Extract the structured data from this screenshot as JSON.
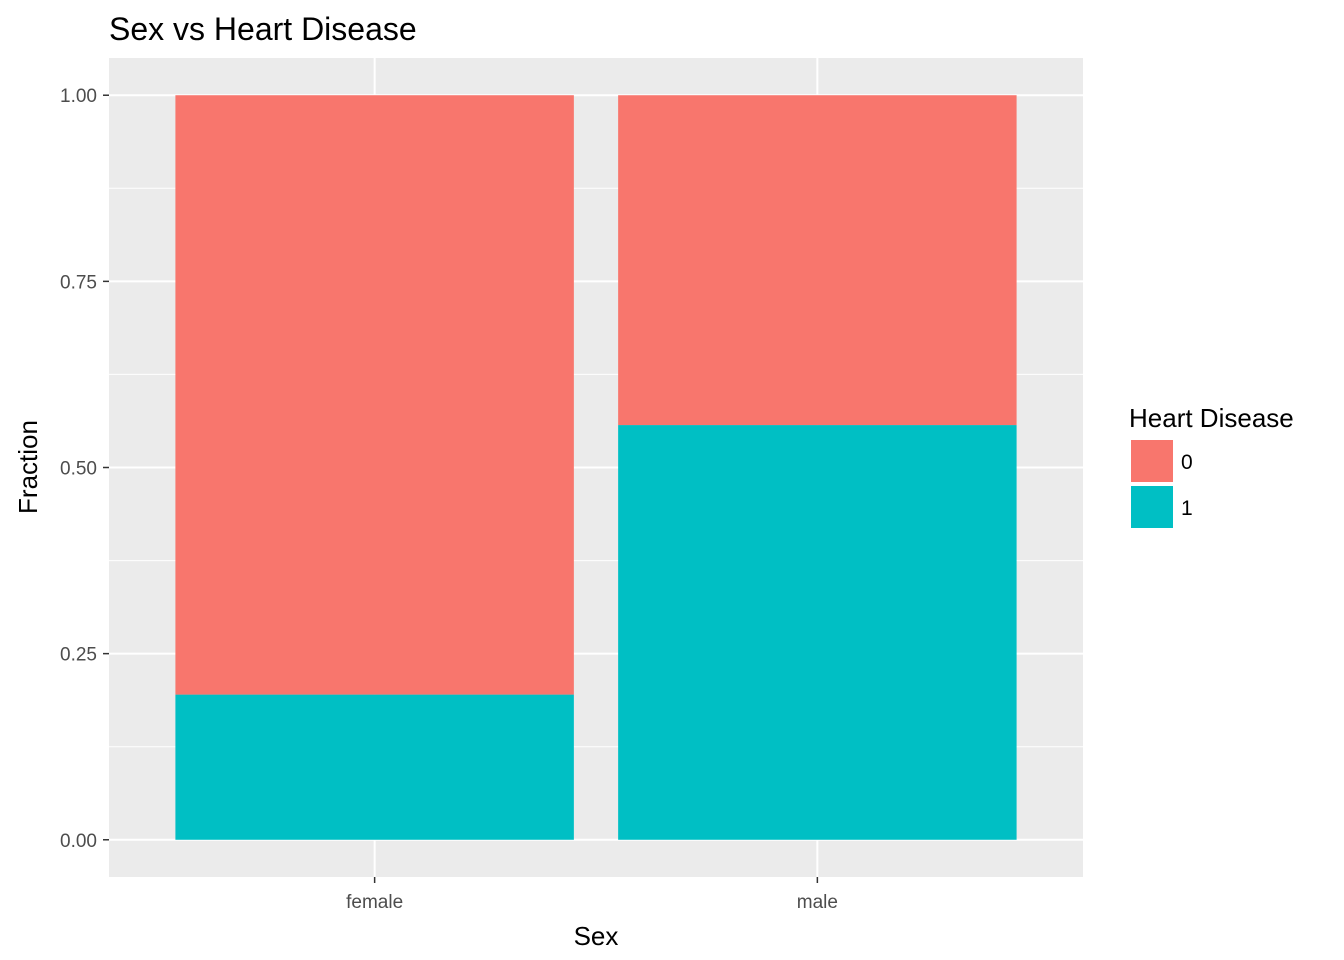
{
  "chart_data": {
    "type": "bar",
    "stacked": true,
    "title": "Sex vs Heart Disease",
    "xlabel": "Sex",
    "ylabel": "Fraction",
    "categories": [
      "female",
      "male"
    ],
    "series": [
      {
        "name": "0",
        "color": "#F8766D",
        "values": [
          0.805,
          0.443
        ]
      },
      {
        "name": "1",
        "color": "#00BFC4",
        "values": [
          0.195,
          0.557
        ]
      }
    ],
    "ylim": [
      -0.05,
      1.05
    ],
    "yticks": [
      0.0,
      0.25,
      0.5,
      0.75,
      1.0
    ],
    "ytick_labels": [
      "0.00",
      "0.25",
      "0.50",
      "0.75",
      "1.00"
    ],
    "legend": {
      "title": "Heart Disease",
      "position": "right"
    },
    "grid": true,
    "panel_background": "#EBEBEB",
    "grid_color": "#FFFFFF"
  }
}
